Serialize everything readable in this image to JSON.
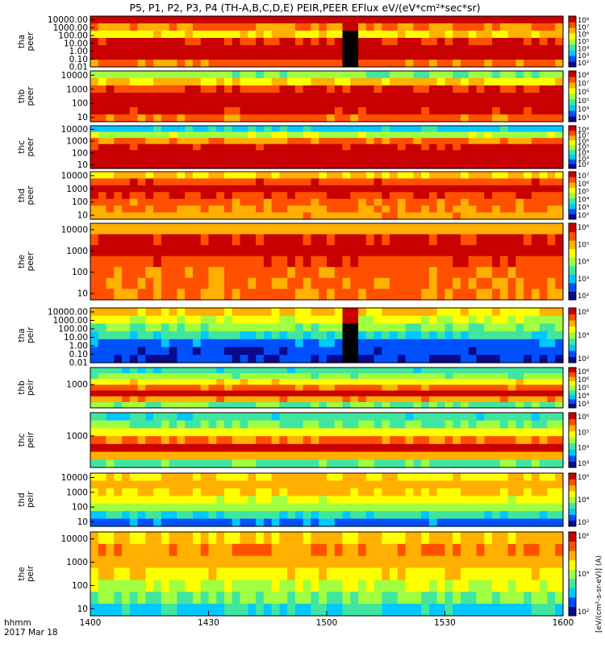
{
  "title": "P5, P1, P2, P3, P4 (TH-A,B,C,D,E) PEIR,PEER EFlux eV/(eV*cm²*sec*sr)",
  "time_axis": {
    "label_line1": "hhmm",
    "label_line2": "2017 Mar 18",
    "ticks": [
      "1400",
      "1430",
      "1500",
      "1530",
      "1600"
    ],
    "tick_minutes": [
      0,
      30,
      60,
      90,
      120
    ]
  },
  "colorbar_units_label": "[eV/(cm²-s-sr-eV)] (A)",
  "palette": [
    "#0a0a8c",
    "#0050ff",
    "#00c8ff",
    "#40e6a0",
    "#a0ff40",
    "#ffff00",
    "#ffb000",
    "#ff5000",
    "#c80000"
  ],
  "chart_data": [
    {
      "type": "heatmap",
      "probe": "tha",
      "species": "peer",
      "ylabel": "tha\npeer",
      "yticks": [
        "10000.00",
        "1000.00",
        "100.00",
        "10.00",
        "1.00",
        "0.10",
        "0.01"
      ],
      "ylim": [
        0.01,
        30000
      ],
      "yscale": "log",
      "colorbar_ticks": [
        "10⁸",
        "10⁷",
        "10⁶",
        "10⁵",
        "10⁴",
        "10³",
        "10²"
      ],
      "clim": [
        100,
        100000000
      ],
      "cscale": "log",
      "description_rows": "energy bands top to bottom",
      "bands": [
        8.2,
        6.5,
        5.4,
        7.6,
        8.9,
        8.9,
        6.8
      ],
      "gap_minutes": [
        63,
        67
      ]
    },
    {
      "type": "heatmap",
      "probe": "thb",
      "species": "peer",
      "ylabel": "thb\npeer",
      "yticks": [
        "10000",
        "1000",
        "100",
        "10"
      ],
      "ylim": [
        5,
        20000
      ],
      "yscale": "log",
      "colorbar_ticks": [
        "10⁸",
        "10⁷",
        "10⁶",
        "10⁵",
        "10⁴",
        "10³"
      ],
      "clim": [
        1000,
        100000000
      ],
      "cscale": "log",
      "bands": [
        3.8,
        5.6,
        7.4,
        8.6,
        8.6,
        7.8,
        6.8
      ]
    },
    {
      "type": "heatmap",
      "probe": "thc",
      "species": "peer",
      "ylabel": "thc\npeer",
      "yticks": [
        "10000",
        "1000",
        "100",
        "10"
      ],
      "ylim": [
        5,
        20000
      ],
      "yscale": "log",
      "colorbar_ticks": [
        "10⁸",
        "10⁷",
        "10⁶",
        "10⁵",
        "10⁴",
        "10³",
        "10²"
      ],
      "clim": [
        100,
        100000000
      ],
      "cscale": "log",
      "bands": [
        2.2,
        4.2,
        6.6,
        7.8,
        8.4,
        8.6,
        8.4
      ]
    },
    {
      "type": "heatmap",
      "probe": "thd",
      "species": "peer",
      "ylabel": "thd\npeer",
      "yticks": [
        "10000",
        "1000",
        "100",
        "10"
      ],
      "ylim": [
        5,
        20000
      ],
      "yscale": "log",
      "colorbar_ticks": [
        "10⁷",
        "10⁶",
        "10⁵",
        "10⁴",
        "10³",
        "10²"
      ],
      "clim": [
        100,
        10000000
      ],
      "cscale": "log",
      "bands": [
        5.6,
        7.2,
        8.0,
        7.4,
        6.8,
        6.4,
        6.2
      ]
    },
    {
      "type": "heatmap",
      "probe": "the",
      "species": "peer",
      "ylabel": "the\npeer",
      "yticks": [
        "10000",
        "1000",
        "100",
        "10"
      ],
      "ylim": [
        5,
        20000
      ],
      "yscale": "log",
      "colorbar_ticks": [
        "10⁶",
        "10⁵",
        "10⁴",
        "10³",
        "10²"
      ],
      "clim": [
        100,
        1000000
      ],
      "cscale": "log",
      "bands": [
        6.0,
        7.8,
        8.0,
        7.2,
        6.8,
        6.6,
        6.6
      ]
    },
    {
      "type": "heatmap",
      "probe": "tha",
      "species": "peir",
      "ylabel": "tha\npeir",
      "yticks": [
        "10000.00",
        "1000.00",
        "100.00",
        "10.00",
        "1.00",
        "0.10",
        "0.01"
      ],
      "ylim": [
        0.01,
        30000
      ],
      "yscale": "log",
      "colorbar_ticks": [
        "10⁶",
        "10⁴",
        "10²"
      ],
      "clim": [
        100,
        1000000
      ],
      "cscale": "log",
      "bands": [
        5.6,
        4.6,
        3.6,
        2.6,
        1.2,
        0.8,
        0.6
      ],
      "gap_minutes": [
        63,
        67
      ]
    },
    {
      "type": "heatmap",
      "probe": "thb",
      "species": "peir",
      "ylabel": "thb\npeir",
      "yticks": [
        "1000"
      ],
      "ylim": [
        10,
        30000
      ],
      "yscale": "log",
      "colorbar_ticks": [
        "10⁸",
        "10⁶",
        "10⁵",
        "10⁴",
        "10³"
      ],
      "clim": [
        1000,
        100000000
      ],
      "cscale": "log",
      "bands": [
        2.8,
        3.8,
        5.2,
        6.8,
        8.6,
        6.2,
        3.4
      ]
    },
    {
      "type": "heatmap",
      "probe": "thc",
      "species": "peir",
      "ylabel": "thc\npeir",
      "yticks": [
        "1000"
      ],
      "ylim": [
        10,
        30000
      ],
      "yscale": "log",
      "colorbar_ticks": [
        "10⁶",
        "10⁵",
        "10⁴",
        "10³"
      ],
      "clim": [
        1000,
        1000000
      ],
      "cscale": "log",
      "bands": [
        2.8,
        3.6,
        5.0,
        6.6,
        8.6,
        6.0,
        3.2
      ]
    },
    {
      "type": "heatmap",
      "probe": "thd",
      "species": "peir",
      "ylabel": "thd\npeir",
      "yticks": [
        "10000",
        "1000",
        "100",
        "10"
      ],
      "ylim": [
        5,
        20000
      ],
      "yscale": "log",
      "colorbar_ticks": [
        "10⁶",
        "10⁴",
        "10²"
      ],
      "clim": [
        100,
        1000000
      ],
      "cscale": "log",
      "bands": [
        5.4,
        6.0,
        5.6,
        4.8,
        4.0,
        2.8,
        1.2
      ]
    },
    {
      "type": "heatmap",
      "probe": "the",
      "species": "peir",
      "ylabel": "the\npeir",
      "yticks": [
        "10000",
        "1000",
        "100",
        "10"
      ],
      "ylim": [
        5,
        20000
      ],
      "yscale": "log",
      "colorbar_ticks": [
        "10⁶",
        "10⁴",
        "10²"
      ],
      "clim": [
        100,
        1000000
      ],
      "cscale": "log",
      "bands": [
        5.6,
        6.4,
        6.0,
        5.2,
        4.4,
        3.6,
        2.4
      ]
    }
  ]
}
